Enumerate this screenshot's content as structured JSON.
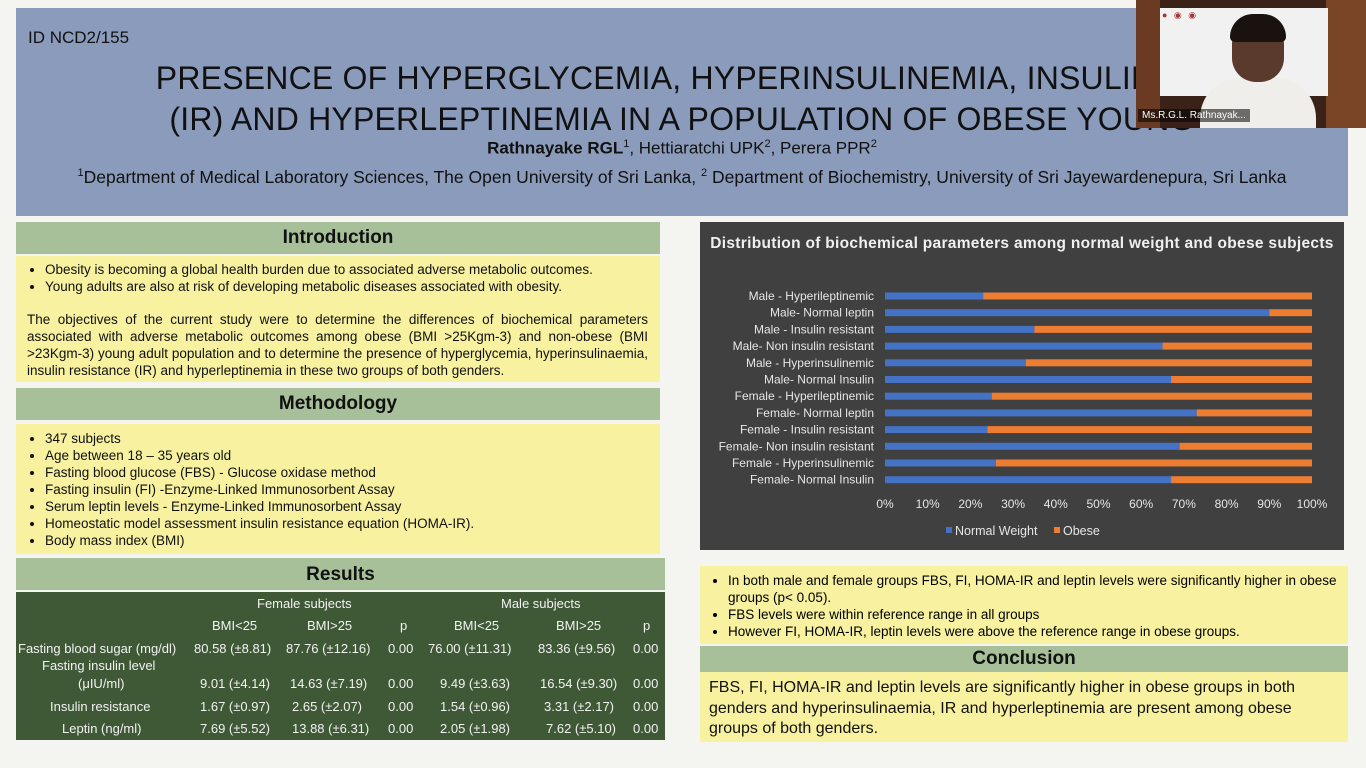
{
  "header": {
    "id": "ID NCD2/155",
    "title_line1": "PRESENCE OF HYPERGLYCEMIA, HYPERINSULINEMIA, INSULIN RE",
    "title_line2": "(IR) AND HYPERLEPTINEMIA IN A POPULATION OF OBESE YOUNG",
    "author_main": "Rathnayake RGL",
    "author_main_sup": "1",
    "author_rest_1": ", Hettiaratchi UPK",
    "author_rest_1_sup": "2",
    "author_rest_2": ", Perera PPR",
    "author_rest_2_sup": "2",
    "affil_sup1": "1",
    "affil_text1": "Department of Medical Laboratory Sciences, The Open University of Sri Lanka, ",
    "affil_sup2": "2",
    "affil_text2": " Department of Biochemistry, University of Sri Jayewardenepura, Sri Lanka"
  },
  "video": {
    "participant_name": "Ms.R.G.L. Rathnayak..."
  },
  "introduction": {
    "heading": "Introduction",
    "bullets": [
      "Obesity is becoming a global health burden due to associated adverse metabolic outcomes.",
      "Young adults are also at risk of developing metabolic diseases associated with obesity."
    ],
    "paragraph": "The objectives of the current study were to determine the differences of biochemical parameters associated with adverse metabolic outcomes among obese (BMI >25Kgm-3) and non-obese (BMI >23Kgm-3) young adult population and to determine the presence of hyperglycemia, hyperinsulinaemia, insulin resistance (IR) and hyperleptinemia in these two groups of both genders."
  },
  "methodology": {
    "heading": "Methodology",
    "bullets": [
      "347 subjects",
      "Age between 18 – 35 years old",
      "Fasting blood glucose (FBS) - Glucose oxidase method",
      "Fasting insulin (FI) -Enzyme-Linked Immunosorbent Assay",
      "Serum leptin levels - Enzyme-Linked Immunosorbent Assay",
      "Homeostatic model assessment insulin resistance equation (HOMA-IR).",
      "Body mass index (BMI)"
    ]
  },
  "results": {
    "heading": "Results",
    "group_female": "Female subjects",
    "group_male": "Male subjects",
    "col_headers": [
      "BMI<25",
      "BMI>25",
      "p",
      "BMI<25",
      "BMI>25",
      "p"
    ],
    "rows": [
      {
        "label": "Fasting blood sugar (mg/dl)",
        "label2": "",
        "values": [
          "80.58 (±8.81)",
          "87.76 (±12.16)",
          "0.00",
          "76.00 (±11.31)",
          "83.36 (±9.56)",
          "0.00"
        ]
      },
      {
        "label": "Fasting insulin level",
        "label2": "(μIU/ml)",
        "values": [
          "9.01 (±4.14)",
          "14.63 (±7.19)",
          "0.00",
          "9.49 (±3.63)",
          "16.54 (±9.30)",
          "0.00"
        ]
      },
      {
        "label": "Insulin resistance",
        "label2": "",
        "values": [
          "1.67 (±0.97)",
          "2.65 (±2.07)",
          "0.00",
          "1.54 (±0.96)",
          "3.31 (±2.17)",
          "0.00"
        ]
      },
      {
        "label": "Leptin (ng/ml)",
        "label2": "",
        "values": [
          "7.69 (±5.52)",
          "13.88 (±6.31)",
          "0.00",
          "2.05 (±1.98)",
          "7.62 (±5.10)",
          "0.00"
        ]
      }
    ]
  },
  "findings": {
    "bullets": [
      "In both male and female groups FBS, FI, HOMA-IR and leptin levels were significantly higher in obese groups (p< 0.05).",
      "FBS levels were within reference range in all groups",
      "However FI, HOMA-IR, leptin levels were above the reference range in obese groups."
    ]
  },
  "conclusion": {
    "heading": "Conclusion",
    "text": "FBS, FI, HOMA-IR and leptin levels are significantly higher in obese groups in both genders and hyperinsulinaemia, IR and hyperleptinemia are present among obese groups of both genders."
  },
  "colors": {
    "normal": "#4472c4",
    "obese": "#ed7d31"
  },
  "chart_data": {
    "type": "bar",
    "orientation": "horizontal",
    "stacked": "100%",
    "title": "Distribution of biochemical parameters among normal weight and obese subjects",
    "categories": [
      "Male - Hyperileptinemic",
      "Male- Normal leptin",
      "Male - Insulin resistant",
      "Male- Non insulin resistant",
      "Male - Hyperinsulinemic",
      "Male- Normal Insulin",
      "Female - Hyperileptinemic",
      "Female- Normal leptin",
      "Female - Insulin resistant",
      "Female- Non insulin resistant",
      "Female - Hyperinsulinemic",
      "Female- Normal Insulin"
    ],
    "series": [
      {
        "name": "Normal Weight",
        "values": [
          23,
          90,
          35,
          65,
          33,
          67,
          25,
          73,
          24,
          69,
          26,
          67
        ]
      },
      {
        "name": "Obese",
        "values": [
          77,
          10,
          65,
          35,
          67,
          33,
          75,
          27,
          76,
          31,
          74,
          33
        ]
      }
    ],
    "x_ticks": [
      "0%",
      "10%",
      "20%",
      "30%",
      "40%",
      "50%",
      "60%",
      "70%",
      "80%",
      "90%",
      "100%"
    ],
    "xlim": [
      0,
      100
    ],
    "legend": "bottom"
  }
}
